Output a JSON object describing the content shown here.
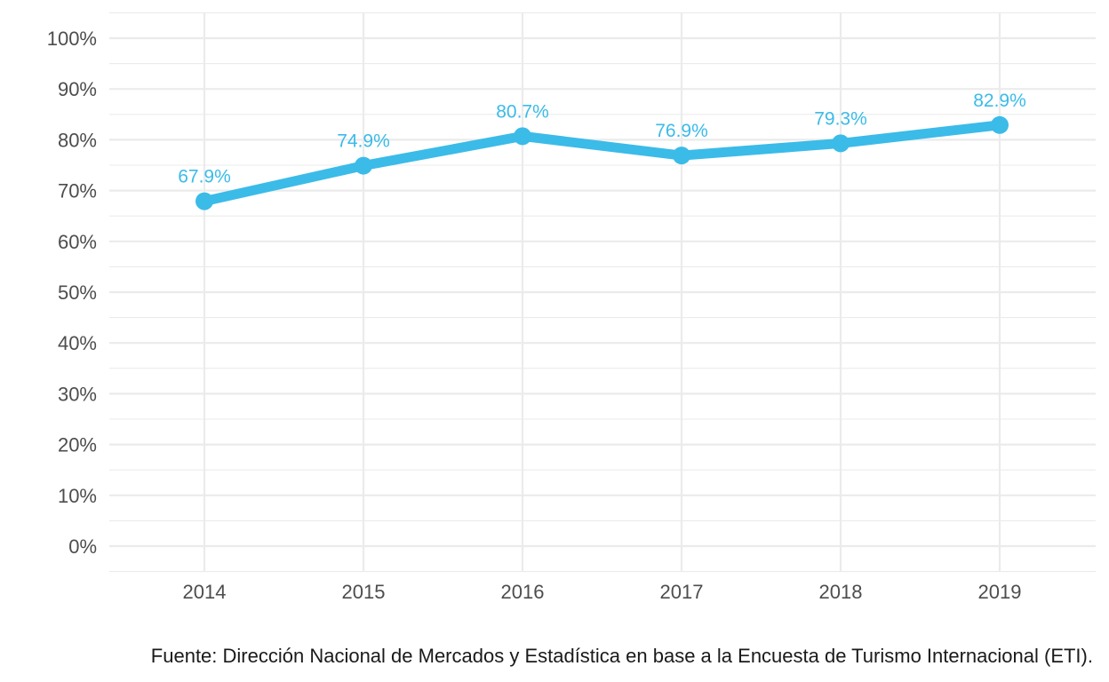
{
  "chart_data": {
    "type": "line",
    "categories": [
      "2014",
      "2015",
      "2016",
      "2017",
      "2018",
      "2019"
    ],
    "series": [
      {
        "values": [
          67.9,
          74.9,
          80.7,
          76.9,
          79.3,
          82.9
        ],
        "labels": [
          "67.9%",
          "74.9%",
          "80.7%",
          "76.9%",
          "79.3%",
          "82.9%"
        ]
      }
    ],
    "y_ticks": [
      "0%",
      "10%",
      "20%",
      "30%",
      "40%",
      "50%",
      "60%",
      "70%",
      "80%",
      "90%",
      "100%"
    ],
    "ylim": [
      0,
      100
    ],
    "grid": true,
    "legend": "none",
    "line_color": "#3bbbe8",
    "gridline_color": "#ebebeb",
    "caption": "Fuente: Dirección Nacional de Mercados y Estadística en base a la Encuesta de Turismo Internacional (ETI)."
  }
}
